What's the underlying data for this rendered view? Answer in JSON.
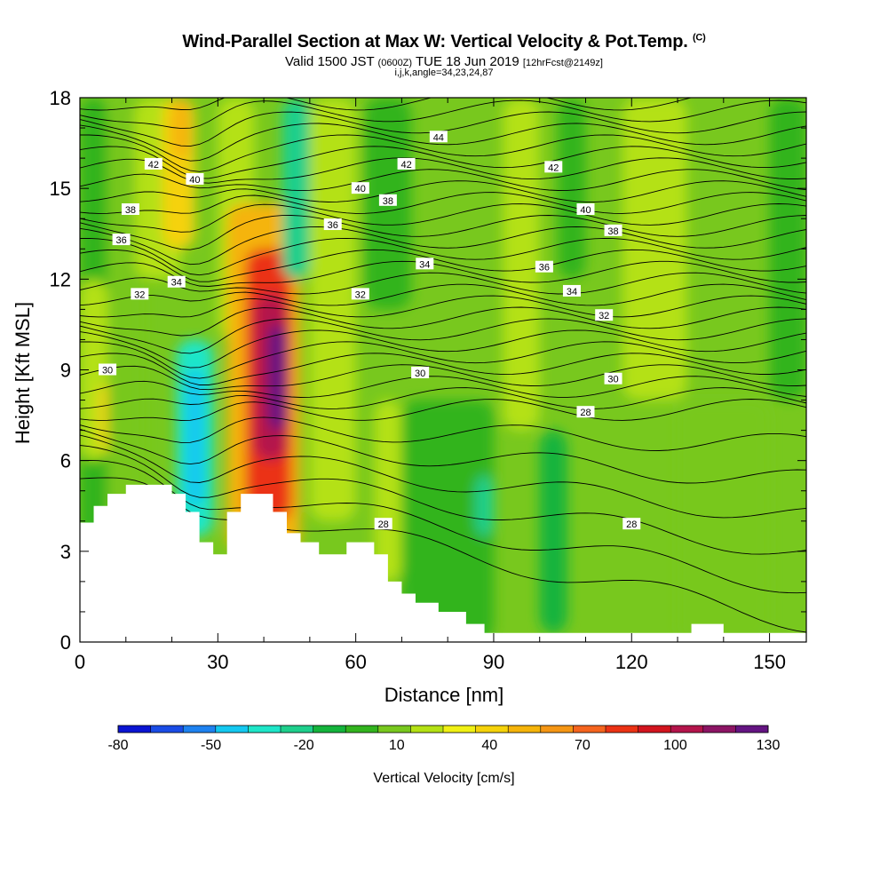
{
  "title": {
    "main": "Wind-Parallel Section at Max W: Vertical Velocity & Pot.Temp.",
    "main_unit": "(C)",
    "valid_prefix": "Valid 1500 JST",
    "valid_utc": "(0600Z)",
    "valid_date": "TUE 18 Jun 2019",
    "forecast": "[12hrFcst@2149z]",
    "indices": "i,j,k,angle=34,23,24,87"
  },
  "chart_data": {
    "type": "heatmap",
    "xlabel": "Distance [nm]",
    "ylabel": "Height [Kft MSL]",
    "xlim": [
      0,
      158
    ],
    "ylim": [
      0,
      18
    ],
    "x_ticks": [
      "0",
      "30",
      "60",
      "90",
      "120",
      "150"
    ],
    "y_ticks": [
      "0",
      "3",
      "6",
      "9",
      "12",
      "15",
      "18"
    ],
    "colorbar": {
      "label": "Vertical Velocity [cm/s]",
      "tick_labels": [
        "-80",
        "-50",
        "-20",
        "10",
        "40",
        "70",
        "100",
        "130"
      ],
      "min": -80,
      "max": 130,
      "step": 10,
      "colors": [
        "#0a14d2",
        "#1a4ce6",
        "#1e82f0",
        "#14c8f0",
        "#1ee6c8",
        "#1ecf8c",
        "#14b43c",
        "#32b41e",
        "#78c81e",
        "#b4e114",
        "#f0f014",
        "#f5d20a",
        "#f5b40a",
        "#f59614",
        "#f5641e",
        "#eb3214",
        "#d2141e",
        "#b4144b",
        "#8c1464",
        "#641482"
      ]
    },
    "velocity_cells": [
      {
        "x": [
          0,
          6
        ],
        "y": [
          0,
          18
        ],
        "value": -5
      },
      {
        "x": [
          0,
          6
        ],
        "y": [
          6,
          12
        ],
        "value": 12
      },
      {
        "x": [
          4,
          10
        ],
        "y": [
          6.2,
          8.6
        ],
        "value": 35
      },
      {
        "x": [
          6,
          14
        ],
        "y": [
          0,
          18
        ],
        "value": 5
      },
      {
        "x": [
          12,
          22
        ],
        "y": [
          12,
          18
        ],
        "value": 18
      },
      {
        "x": [
          18,
          25
        ],
        "y": [
          13,
          18
        ],
        "value": 35
      },
      {
        "x": [
          20,
          24
        ],
        "y": [
          16,
          18
        ],
        "value": 45
      },
      {
        "x": [
          21,
          29
        ],
        "y": [
          3.5,
          10
        ],
        "value": -40
      },
      {
        "x": [
          23,
          27
        ],
        "y": [
          4.5,
          9
        ],
        "value": -50
      },
      {
        "x": [
          30,
          38
        ],
        "y": [
          10,
          18
        ],
        "value": 18
      },
      {
        "x": [
          32,
          48
        ],
        "y": [
          3,
          14.5
        ],
        "value": 45
      },
      {
        "x": [
          36,
          46
        ],
        "y": [
          4,
          13
        ],
        "value": 72
      },
      {
        "x": [
          38,
          45
        ],
        "y": [
          6,
          11.5
        ],
        "value": 92
      },
      {
        "x": [
          41,
          45
        ],
        "y": [
          7,
          10.5
        ],
        "value": 112
      },
      {
        "x": [
          43,
          45
        ],
        "y": [
          8,
          10
        ],
        "value": 128
      },
      {
        "x": [
          44,
          50
        ],
        "y": [
          12,
          18
        ],
        "value": -25
      },
      {
        "x": [
          50,
          60
        ],
        "y": [
          4,
          18
        ],
        "value": 12
      },
      {
        "x": [
          62,
          72
        ],
        "y": [
          11,
          18
        ],
        "value": -10
      },
      {
        "x": [
          64,
          70
        ],
        "y": [
          2,
          8
        ],
        "value": 18
      },
      {
        "x": [
          70,
          90
        ],
        "y": [
          0,
          8
        ],
        "value": -10
      },
      {
        "x": [
          86,
          90
        ],
        "y": [
          3.5,
          5.5
        ],
        "value": -25
      },
      {
        "x": [
          92,
          100
        ],
        "y": [
          7,
          18
        ],
        "value": 15
      },
      {
        "x": [
          100,
          106
        ],
        "y": [
          0.3,
          7
        ],
        "value": -20
      },
      {
        "x": [
          104,
          110
        ],
        "y": [
          12,
          18
        ],
        "value": -8
      },
      {
        "x": [
          118,
          132
        ],
        "y": [
          8,
          18
        ],
        "value": 18
      },
      {
        "x": [
          130,
          150
        ],
        "y": [
          0,
          8
        ],
        "value": 5
      },
      {
        "x": [
          150,
          158
        ],
        "y": [
          8,
          18
        ],
        "value": -8
      }
    ],
    "terrain": [
      [
        0,
        3.95
      ],
      [
        3,
        4.5
      ],
      [
        6,
        4.9
      ],
      [
        10,
        5.2
      ],
      [
        20,
        4.9
      ],
      [
        23,
        4.3
      ],
      [
        26,
        3.3
      ],
      [
        29,
        2.9
      ],
      [
        32,
        4.3
      ],
      [
        35,
        4.9
      ],
      [
        42,
        4.3
      ],
      [
        45,
        3.6
      ],
      [
        48,
        3.3
      ],
      [
        52,
        2.9
      ],
      [
        58,
        3.3
      ],
      [
        64,
        2.9
      ],
      [
        67,
        2.0
      ],
      [
        70,
        1.6
      ],
      [
        73,
        1.3
      ],
      [
        78,
        1.0
      ],
      [
        84,
        0.6
      ],
      [
        88,
        0.3
      ],
      [
        132,
        0.3
      ],
      [
        133,
        0.6
      ],
      [
        139,
        0.6
      ],
      [
        140,
        0.3
      ],
      [
        158,
        0.3
      ]
    ],
    "theta_contours": [
      {
        "label": "28",
        "label_pos": [
          [
            66,
            3.9
          ],
          [
            120,
            3.9
          ],
          [
            110,
            7.6
          ]
        ]
      },
      {
        "label": "30",
        "label_pos": [
          [
            6,
            9
          ],
          [
            74,
            8.9
          ],
          [
            116,
            8.7
          ]
        ]
      },
      {
        "label": "32",
        "label_pos": [
          [
            13,
            11.5
          ],
          [
            61,
            11.5
          ],
          [
            114,
            10.8
          ]
        ]
      },
      {
        "label": "34",
        "label_pos": [
          [
            21,
            11.9
          ],
          [
            75,
            12.5
          ],
          [
            107,
            11.6
          ]
        ]
      },
      {
        "label": "36",
        "label_pos": [
          [
            9,
            13.3
          ],
          [
            55,
            13.8
          ],
          [
            101,
            12.4
          ]
        ]
      },
      {
        "label": "38",
        "label_pos": [
          [
            11,
            14.3
          ],
          [
            67,
            14.6
          ],
          [
            116,
            13.6
          ]
        ]
      },
      {
        "label": "40",
        "label_pos": [
          [
            25,
            15.3
          ],
          [
            61,
            15
          ],
          [
            110,
            14.3
          ]
        ]
      },
      {
        "label": "42",
        "label_pos": [
          [
            16,
            15.8
          ],
          [
            71,
            15.8
          ],
          [
            103,
            15.7
          ]
        ]
      },
      {
        "label": "44",
        "label_pos": [
          [
            78,
            16.7
          ]
        ]
      }
    ]
  }
}
